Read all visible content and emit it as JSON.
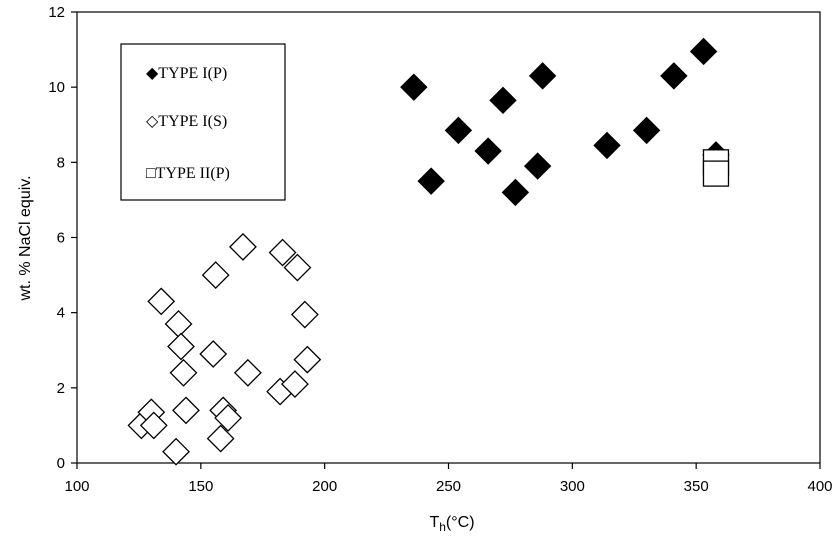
{
  "chart_data": {
    "type": "scatter",
    "xlabel_main": "T",
    "xlabel_sub": "h",
    "xlabel_rest": "(°C)",
    "ylabel": "wt. % NaCl equiv.",
    "xlim": [
      100,
      400
    ],
    "ylim": [
      0,
      12
    ],
    "x_ticks": [
      100,
      150,
      200,
      250,
      300,
      350,
      400
    ],
    "y_ticks": [
      0,
      2,
      4,
      6,
      8,
      10,
      12
    ],
    "grid": false,
    "legend_position": "top-left",
    "series": [
      {
        "name": "TYPE I(P)",
        "marker": "filled-diamond",
        "legend_label": "◆TYPE I(P)",
        "points": [
          [
            236,
            10.0
          ],
          [
            243,
            7.5
          ],
          [
            254,
            8.85
          ],
          [
            266,
            8.3
          ],
          [
            272,
            9.65
          ],
          [
            277,
            7.2
          ],
          [
            286,
            7.9
          ],
          [
            288,
            10.3
          ],
          [
            314,
            8.45
          ],
          [
            330,
            8.85
          ],
          [
            341,
            10.3
          ],
          [
            353,
            10.95
          ],
          [
            358,
            8.2
          ]
        ]
      },
      {
        "name": "TYPE I(S)",
        "marker": "open-diamond",
        "legend_label": "◇TYPE I(S)",
        "points": [
          [
            126,
            1.0
          ],
          [
            130,
            1.35
          ],
          [
            131,
            1.0
          ],
          [
            134,
            4.3
          ],
          [
            140,
            0.3
          ],
          [
            141,
            3.7
          ],
          [
            142,
            3.1
          ],
          [
            143,
            2.4
          ],
          [
            144,
            1.4
          ],
          [
            155,
            2.9
          ],
          [
            156,
            5.0
          ],
          [
            158,
            0.65
          ],
          [
            159,
            1.4
          ],
          [
            161,
            1.2
          ],
          [
            167,
            5.75
          ],
          [
            169,
            2.4
          ],
          [
            182,
            1.9
          ],
          [
            183,
            5.6
          ],
          [
            188,
            2.1
          ],
          [
            189,
            5.2
          ],
          [
            192,
            3.95
          ],
          [
            193,
            2.75
          ]
        ]
      },
      {
        "name": "TYPE II(P)",
        "marker": "open-square",
        "legend_label": "□TYPE II(P)",
        "points": [
          [
            358,
            8.0
          ],
          [
            358,
            7.7
          ]
        ]
      }
    ]
  }
}
